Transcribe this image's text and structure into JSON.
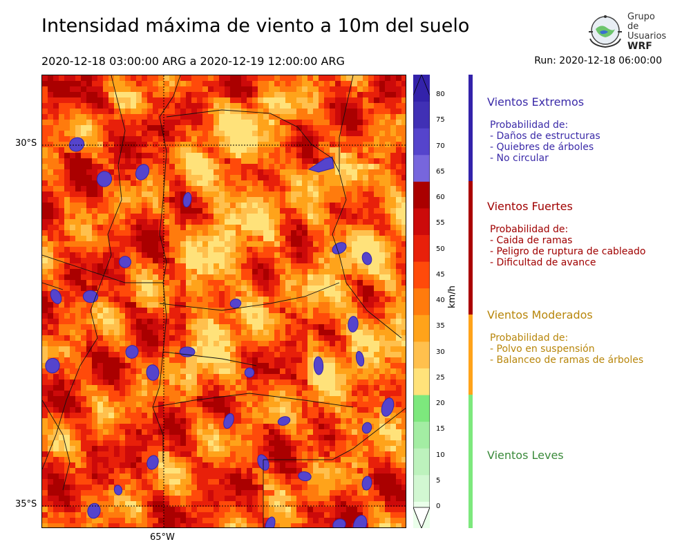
{
  "header": {
    "title": "Intensidad máxima de viento a 10m del suelo",
    "period": "2020-12-18 03:00:00 ARG  a  2020-12-19 12:00:00 ARG",
    "run": "Run: 2020-12-18 06:00:00"
  },
  "logo": {
    "line1": "Grupo de",
    "line2": "Usuarios",
    "line3": "WRF"
  },
  "map": {
    "lat_labels": [
      "30°S",
      "35°S"
    ],
    "lon_labels": [
      "65°W"
    ]
  },
  "colorbar": {
    "unit": "km/h",
    "ticks": [
      "80",
      "75",
      "70",
      "65",
      "60",
      "55",
      "50",
      "45",
      "40",
      "35",
      "30",
      "25",
      "20",
      "15",
      "10",
      "5",
      "0"
    ],
    "levels": [
      {
        "min": 0,
        "max": 5,
        "color": "#eaffea"
      },
      {
        "min": 5,
        "max": 10,
        "color": "#d2f7d2"
      },
      {
        "min": 10,
        "max": 15,
        "color": "#bdf2bd"
      },
      {
        "min": 15,
        "max": 20,
        "color": "#a3eda3"
      },
      {
        "min": 20,
        "max": 25,
        "color": "#7de87d"
      },
      {
        "min": 25,
        "max": 30,
        "color": "#ffe27a"
      },
      {
        "min": 30,
        "max": 35,
        "color": "#ffc04d"
      },
      {
        "min": 35,
        "max": 40,
        "color": "#ffa31a"
      },
      {
        "min": 40,
        "max": 45,
        "color": "#ff7b0d"
      },
      {
        "min": 45,
        "max": 50,
        "color": "#ff4a0a"
      },
      {
        "min": 50,
        "max": 55,
        "color": "#e8200a"
      },
      {
        "min": 55,
        "max": 60,
        "color": "#cc0a0a"
      },
      {
        "min": 60,
        "max": 65,
        "color": "#aa0000"
      },
      {
        "min": 65,
        "max": 70,
        "color": "#7766dd"
      },
      {
        "min": 70,
        "max": 75,
        "color": "#5544cc"
      },
      {
        "min": 75,
        "max": 80,
        "color": "#4030b5"
      },
      {
        "min": 80,
        "max": 85,
        "color": "#3322aa"
      }
    ]
  },
  "categories": [
    {
      "title": "Vientos Extremos",
      "color": "#3a2aa8",
      "range": [
        65,
        85
      ],
      "lines": [
        "Probabilidad de:",
        "- Daños de estructuras",
        "- Quiebres de árboles",
        "- No circular"
      ]
    },
    {
      "title": "Vientos Fuertes",
      "color": "#a00000",
      "range": [
        40,
        65
      ],
      "lines": [
        "Probabilidad de:",
        "- Caida de ramas",
        "- Peligro de ruptura de cableado",
        "- Dificultad de avance"
      ]
    },
    {
      "title": "Vientos Moderados",
      "color": "#b8860b",
      "range": [
        25,
        40
      ],
      "lines": [
        "Probabilidad de:",
        "- Polvo en suspensión",
        "- Balanceo de ramas de árboles"
      ]
    },
    {
      "title": "Vientos Leves",
      "color": "#3a8a3a",
      "range": [
        0,
        25
      ],
      "lines": []
    }
  ],
  "legend_bar_colors": [
    "#3322aa",
    "#aa0000",
    "#ffa31a",
    "#7de87d"
  ]
}
